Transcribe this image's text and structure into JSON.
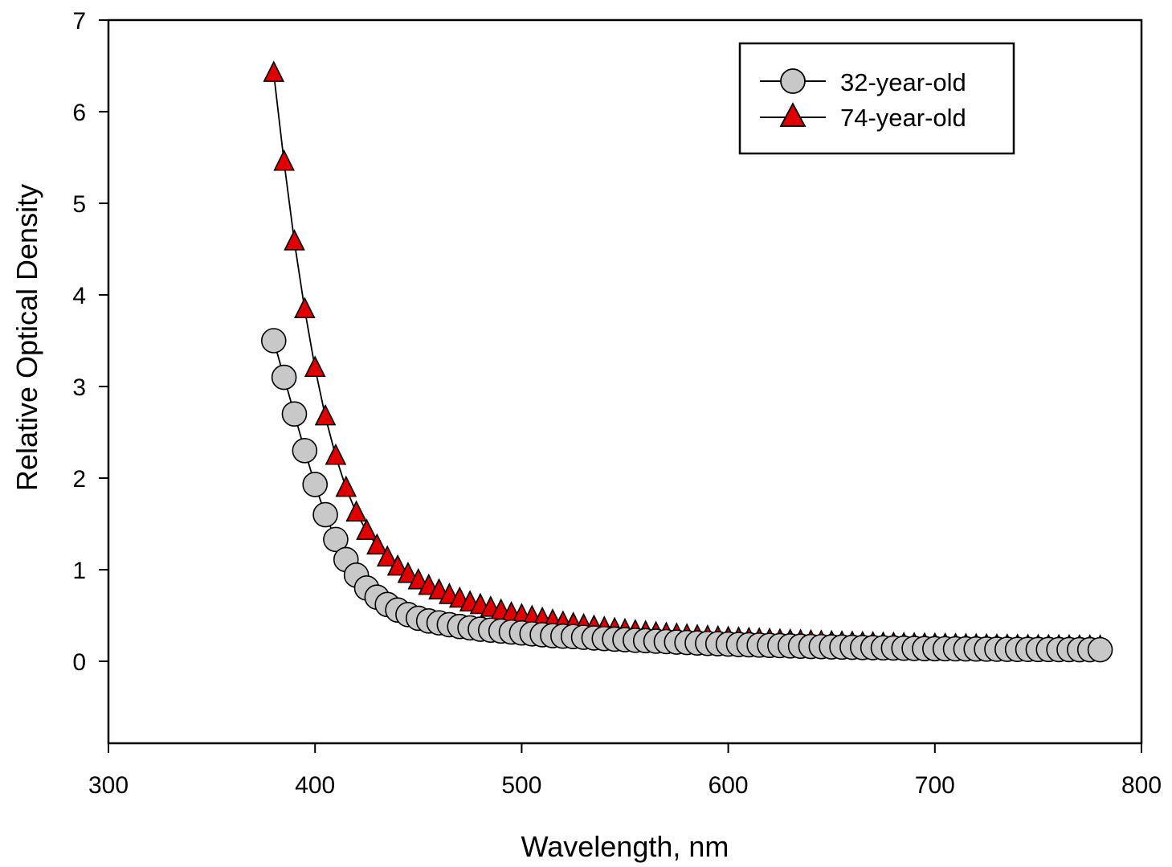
{
  "chart_data": {
    "type": "line",
    "title": "",
    "xlabel": "Wavelength, nm",
    "ylabel": "Relative Optical Density",
    "xlim": [
      300,
      800
    ],
    "ylim": [
      -0.9,
      7
    ],
    "xticks": [
      300,
      400,
      500,
      600,
      700,
      800
    ],
    "yticks": [
      0,
      1,
      2,
      3,
      4,
      5,
      6,
      7
    ],
    "grid": false,
    "legend_position": "top-right",
    "x": [
      380,
      385,
      390,
      395,
      400,
      405,
      410,
      415,
      420,
      425,
      430,
      435,
      440,
      445,
      450,
      455,
      460,
      465,
      470,
      475,
      480,
      485,
      490,
      495,
      500,
      505,
      510,
      515,
      520,
      525,
      530,
      535,
      540,
      545,
      550,
      555,
      560,
      565,
      570,
      575,
      580,
      585,
      590,
      595,
      600,
      605,
      610,
      615,
      620,
      625,
      630,
      635,
      640,
      645,
      650,
      655,
      660,
      665,
      670,
      675,
      680,
      685,
      690,
      695,
      700,
      705,
      710,
      715,
      720,
      725,
      730,
      735,
      740,
      745,
      750,
      755,
      760,
      765,
      770,
      775,
      780
    ],
    "series": [
      {
        "name": "32-year-old",
        "marker": "circle",
        "color": "#c8c8c8",
        "values": [
          3.5,
          3.1,
          2.7,
          2.3,
          1.93,
          1.6,
          1.33,
          1.11,
          0.94,
          0.8,
          0.7,
          0.62,
          0.56,
          0.51,
          0.47,
          0.44,
          0.42,
          0.4,
          0.38,
          0.365,
          0.35,
          0.34,
          0.33,
          0.32,
          0.31,
          0.3,
          0.29,
          0.28,
          0.275,
          0.27,
          0.262,
          0.255,
          0.248,
          0.242,
          0.236,
          0.23,
          0.225,
          0.22,
          0.215,
          0.21,
          0.205,
          0.2,
          0.196,
          0.192,
          0.188,
          0.184,
          0.18,
          0.177,
          0.174,
          0.171,
          0.168,
          0.165,
          0.162,
          0.16,
          0.157,
          0.155,
          0.153,
          0.151,
          0.149,
          0.147,
          0.145,
          0.143,
          0.141,
          0.139,
          0.138,
          0.137,
          0.136,
          0.135,
          0.134,
          0.133,
          0.132,
          0.131,
          0.13,
          0.13,
          0.129,
          0.129,
          0.128,
          0.128,
          0.127,
          0.127,
          0.126
        ]
      },
      {
        "name": "74-year-old",
        "marker": "triangle",
        "color": "#e00000",
        "values": [
          6.42,
          5.45,
          4.58,
          3.84,
          3.2,
          2.67,
          2.24,
          1.89,
          1.62,
          1.42,
          1.26,
          1.13,
          1.03,
          0.95,
          0.88,
          0.82,
          0.77,
          0.72,
          0.68,
          0.64,
          0.61,
          0.58,
          0.55,
          0.52,
          0.5,
          0.48,
          0.46,
          0.44,
          0.42,
          0.405,
          0.39,
          0.375,
          0.36,
          0.348,
          0.336,
          0.325,
          0.315,
          0.305,
          0.296,
          0.288,
          0.28,
          0.272,
          0.265,
          0.258,
          0.252,
          0.246,
          0.241,
          0.236,
          0.231,
          0.226,
          0.222,
          0.218,
          0.214,
          0.21,
          0.206,
          0.203,
          0.2,
          0.197,
          0.194,
          0.191,
          0.189,
          0.186,
          0.184,
          0.182,
          0.18,
          0.178,
          0.176,
          0.174,
          0.172,
          0.171,
          0.169,
          0.168,
          0.166,
          0.165,
          0.164,
          0.163,
          0.162,
          0.161,
          0.16,
          0.159,
          0.158
        ]
      }
    ]
  }
}
